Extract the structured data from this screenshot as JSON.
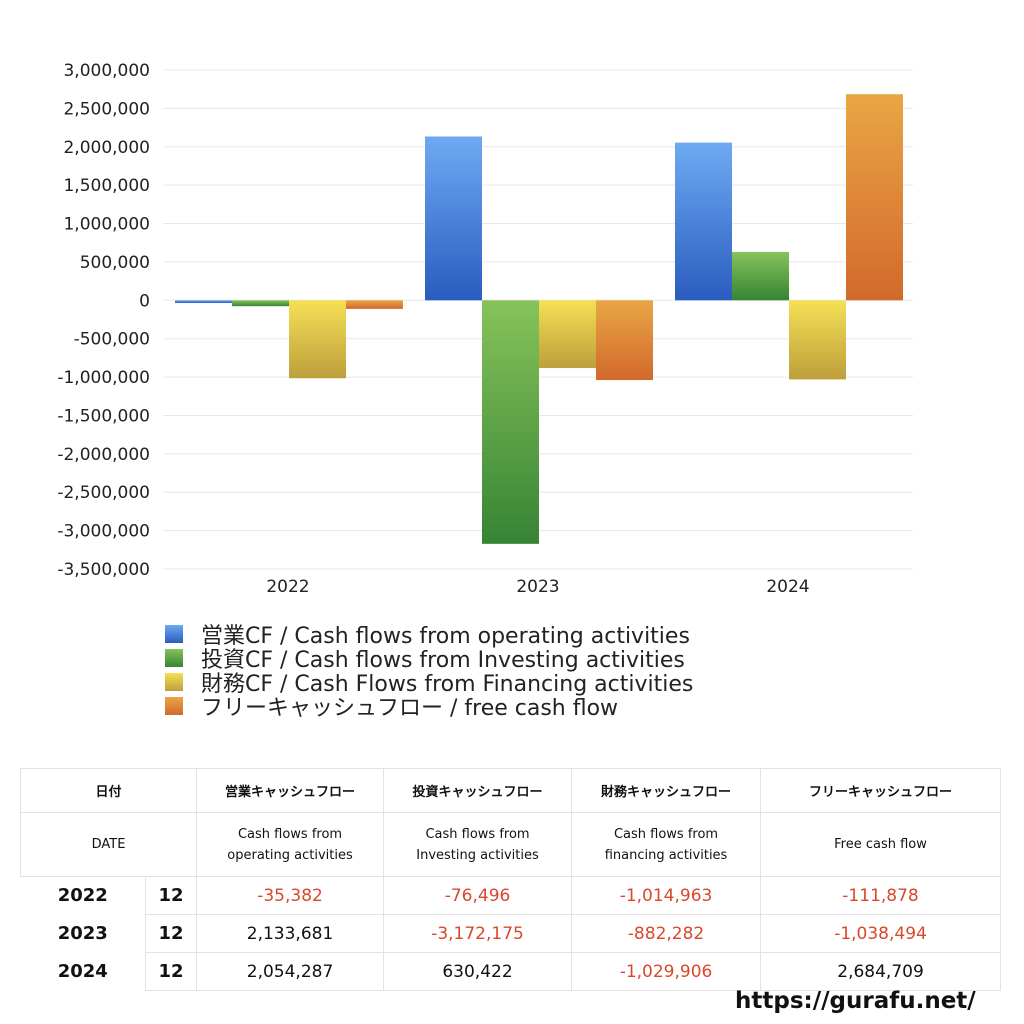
{
  "chart_data": {
    "type": "bar",
    "categories": [
      "2022",
      "2023",
      "2024"
    ],
    "ylim": [
      -3500000,
      3000000
    ],
    "yticks": [
      3000000,
      2500000,
      2000000,
      1500000,
      1000000,
      500000,
      0,
      -500000,
      -1000000,
      -1500000,
      -2000000,
      -2500000,
      -3000000,
      -3500000
    ],
    "ytick_labels": [
      "3,000,000",
      "2,500,000",
      "2,000,000",
      "1,500,000",
      "1,000,000",
      "500,000",
      "0",
      "-500,000",
      "-1,000,000",
      "-1,500,000",
      "-2,000,000",
      "-2,500,000",
      "-3,000,000",
      "-3,500,000"
    ],
    "grid": true,
    "legend_position": "bottom",
    "series": [
      {
        "name": "営業CF / Cash flows from operating activities",
        "values": [
          -35382,
          2133681,
          2054287
        ],
        "colors": [
          "#6eaaf2",
          "#2a5cbf"
        ]
      },
      {
        "name": "投資CF / Cash flows from Investing activities",
        "values": [
          -76496,
          -3172175,
          630422
        ],
        "colors": [
          "#86c35a",
          "#378435"
        ]
      },
      {
        "name": "財務CF / Cash Flows from Financing activities",
        "values": [
          -1014963,
          -882282,
          -1029906
        ],
        "colors": [
          "#f5e055",
          "#bd9f3c"
        ]
      },
      {
        "name": "フリーキャッシュフロー / free cash flow",
        "values": [
          -111878,
          -1038494,
          2684709
        ],
        "colors": [
          "#e9a644",
          "#d2692c"
        ]
      }
    ]
  },
  "table": {
    "header_jp": [
      "日付",
      "営業キャッシュフロー",
      "投資キャッシュフロー",
      "財務キャッシュフロー",
      "フリーキャッシュフロー"
    ],
    "header_en": [
      "DATE",
      "Cash flows from\noperating activities",
      "Cash flows from\nInvesting activities",
      "Cash flows from\nfinancing activities",
      "Free cash flow"
    ],
    "rows": [
      {
        "year": "2022",
        "month": "12",
        "values": [
          "-35,382",
          "-76,496",
          "-1,014,963",
          "-111,878"
        ]
      },
      {
        "year": "2023",
        "month": "12",
        "values": [
          "2,133,681",
          "-3,172,175",
          "-882,282",
          "-1,038,494"
        ]
      },
      {
        "year": "2024",
        "month": "12",
        "values": [
          "2,054,287",
          "630,422",
          "-1,029,906",
          "2,684,709"
        ]
      }
    ],
    "negative_color": "#d9482b"
  },
  "footer": {
    "url": "https://gurafu.net/"
  }
}
